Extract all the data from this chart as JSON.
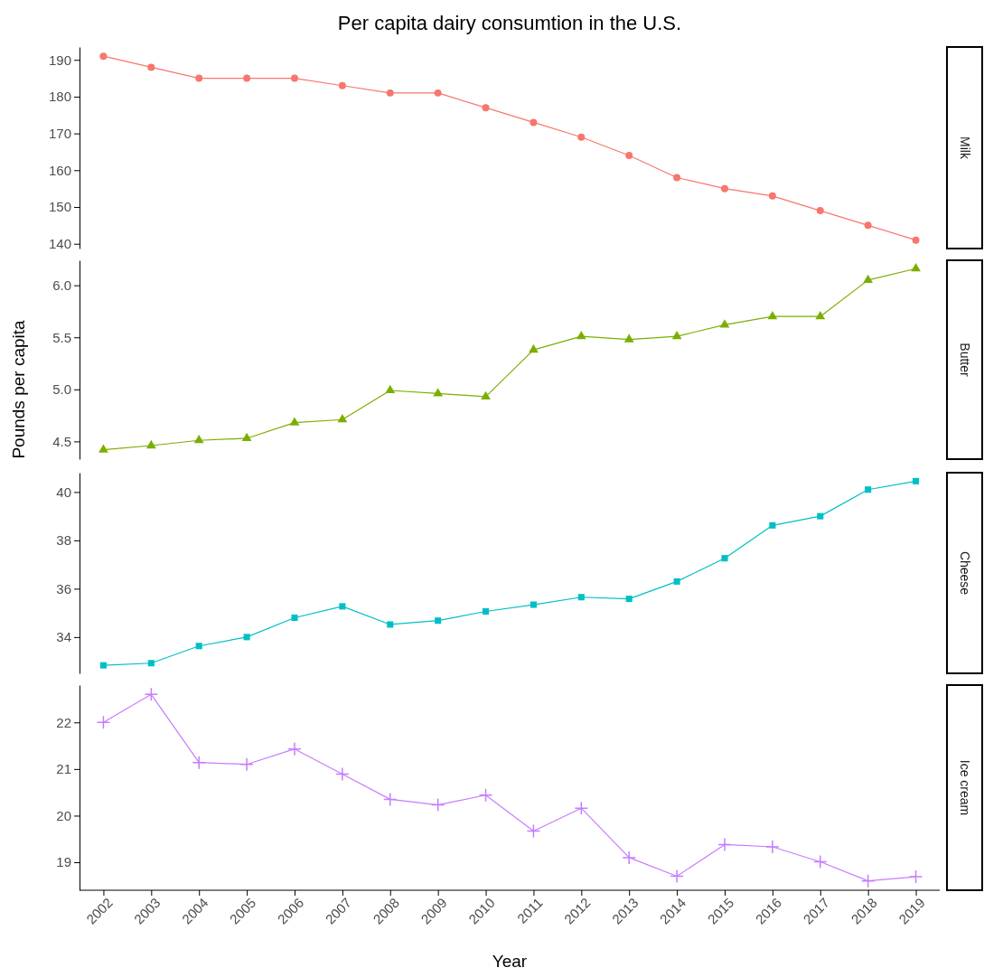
{
  "chart_data": [
    {
      "type": "line",
      "title": "Per capita dairy consumtion in the U.S.",
      "categories": [
        "2002",
        "2003",
        "2004",
        "2005",
        "2006",
        "2007",
        "2008",
        "2009",
        "2010",
        "2011",
        "2012",
        "2013",
        "2014",
        "2015",
        "2016",
        "2017",
        "2018",
        "2019"
      ],
      "ylim": [
        138.7,
        193.5
      ],
      "yticks": [
        140,
        150,
        160,
        170,
        180,
        190
      ],
      "tick_labels": "y",
      "grid": false,
      "legend": false,
      "marker": "circle",
      "line_style": "solid",
      "series": [
        {
          "name": "Milk",
          "color": "#f8766d",
          "values": [
            191,
            188,
            185,
            185,
            185,
            183,
            181,
            181,
            177,
            173,
            169,
            164,
            158,
            155,
            153,
            149,
            145,
            141
          ]
        }
      ]
    },
    {
      "type": "line",
      "ylabel": "Pounds per capita",
      "categories": [
        "2002",
        "2003",
        "2004",
        "2005",
        "2006",
        "2007",
        "2008",
        "2009",
        "2010",
        "2011",
        "2012",
        "2013",
        "2014",
        "2015",
        "2016",
        "2017",
        "2018",
        "2019"
      ],
      "ylim": [
        4.33,
        6.24
      ],
      "yticks": [
        {
          "value": 4.5,
          "label": "4.5"
        },
        {
          "value": 5,
          "label": "5.0"
        },
        {
          "value": 5.5,
          "label": "5.5"
        },
        {
          "value": 6,
          "label": "6.0"
        }
      ],
      "tick_labels": "y",
      "grid": false,
      "legend": false,
      "marker": "triangle",
      "line_style": "solid",
      "series": [
        {
          "name": "Butter",
          "color": "#7cae00",
          "values": [
            4.42,
            4.46,
            4.51,
            4.53,
            4.68,
            4.71,
            4.99,
            4.96,
            4.93,
            5.38,
            5.51,
            5.48,
            5.51,
            5.62,
            5.7,
            5.7,
            6.05,
            6.16
          ]
        }
      ]
    },
    {
      "type": "line",
      "categories": [
        "2002",
        "2003",
        "2004",
        "2005",
        "2006",
        "2007",
        "2008",
        "2009",
        "2010",
        "2011",
        "2012",
        "2013",
        "2014",
        "2015",
        "2016",
        "2017",
        "2018",
        "2019"
      ],
      "ylim": [
        32.5,
        40.8
      ],
      "yticks": [
        34,
        36,
        38,
        40
      ],
      "tick_labels": "y",
      "grid": false,
      "legend": false,
      "marker": "square",
      "line_style": "solid",
      "series": [
        {
          "name": "Cheese",
          "color": "#00bfc4",
          "values": [
            32.83,
            32.92,
            33.63,
            34.0,
            34.8,
            35.27,
            34.52,
            34.68,
            35.06,
            35.34,
            35.65,
            35.58,
            36.3,
            37.26,
            38.62,
            39.0,
            40.1,
            40.45
          ]
        }
      ]
    },
    {
      "type": "line",
      "xlabel": "Year",
      "categories": [
        "2002",
        "2003",
        "2004",
        "2005",
        "2006",
        "2007",
        "2008",
        "2009",
        "2010",
        "2011",
        "2012",
        "2013",
        "2014",
        "2015",
        "2016",
        "2017",
        "2018",
        "2019"
      ],
      "ylim": [
        18.4,
        22.8
      ],
      "yticks": [
        19,
        20,
        21,
        22
      ],
      "grid": false,
      "legend": false,
      "marker": "cross",
      "line_style": "solid",
      "series": [
        {
          "name": "Ice cream",
          "color": "#c77cff",
          "values": [
            22.0,
            22.6,
            21.14,
            21.1,
            21.43,
            20.89,
            20.35,
            20.23,
            20.44,
            19.67,
            20.16,
            19.1,
            18.7,
            19.38,
            19.33,
            19.01,
            18.6,
            18.69
          ]
        }
      ]
    }
  ]
}
